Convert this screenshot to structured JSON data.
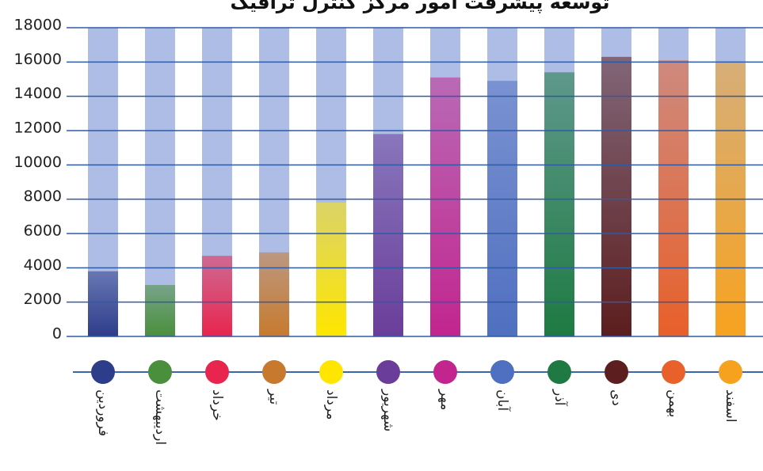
{
  "chart_data": {
    "type": "bar",
    "title": "توسعه پیشرفت امور مرکز کنترل ترافیک",
    "categories": [
      "فروردین",
      "اردیبهشت",
      "خرداد",
      "تیر",
      "مرداد",
      "شهریور",
      "مهر",
      "آبان",
      "آذر",
      "دی",
      "بهمن",
      "اسفند"
    ],
    "values": [
      3800,
      3000,
      4700,
      4900,
      7800,
      11800,
      15100,
      14900,
      15400,
      16300,
      16100,
      16000
    ],
    "colors": [
      "#2e3d8a",
      "#4a8f3c",
      "#e8254e",
      "#c77a2e",
      "#ffe600",
      "#6a3d9a",
      "#c2258e",
      "#4f6fc0",
      "#1e7a42",
      "#5c1e1e",
      "#e8602a",
      "#f7a21f"
    ],
    "ylim": [
      0,
      18000
    ],
    "yticks": [
      0,
      2000,
      4000,
      6000,
      8000,
      10000,
      12000,
      14000,
      16000,
      18000
    ],
    "grid": true
  }
}
